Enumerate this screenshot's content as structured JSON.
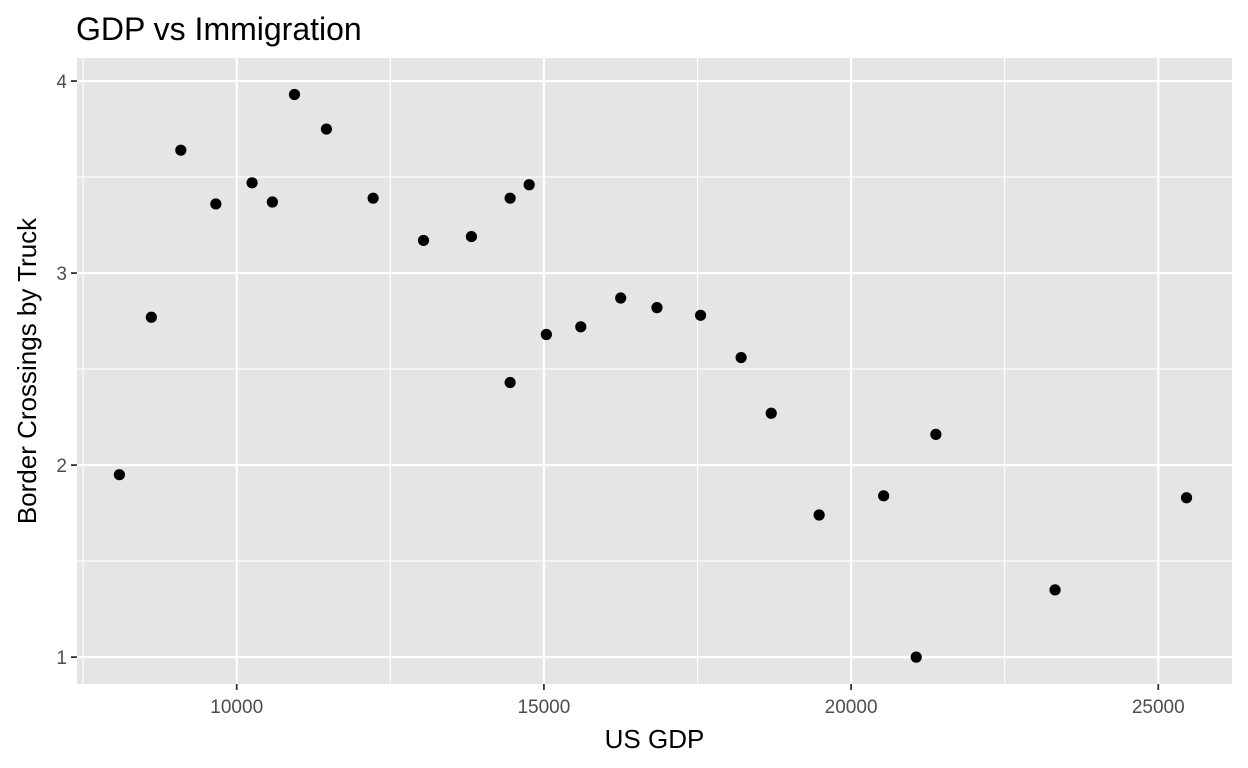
{
  "chart_data": {
    "type": "scatter",
    "title": "GDP vs Immigration",
    "xlabel": "US GDP",
    "ylabel": "Border Crossings by Truck",
    "xlim": [
      7400,
      26200
    ],
    "ylim": [
      0.86,
      4.12
    ],
    "x_ticks": [
      10000,
      15000,
      20000,
      25000
    ],
    "x_tick_labels": [
      "10000",
      "15000",
      "20000",
      "25000"
    ],
    "x_minor_ticks": [
      7500,
      12500,
      17500,
      22500
    ],
    "y_ticks": [
      1,
      2,
      3,
      4
    ],
    "y_tick_labels": [
      "1",
      "2",
      "3",
      "4"
    ],
    "y_minor_ticks": [
      1.5,
      2.5,
      3.5
    ],
    "grid": true,
    "legend": "none",
    "colors": {
      "panel": "#e5e5e5",
      "grid": "#ffffff",
      "point": "#000000",
      "tick_label": "#4d4d4d",
      "tick_mark": "#333333"
    },
    "points": [
      {
        "x": 8090,
        "y": 1.95
      },
      {
        "x": 8610,
        "y": 2.77
      },
      {
        "x": 9090,
        "y": 3.64
      },
      {
        "x": 9660,
        "y": 3.36
      },
      {
        "x": 10250,
        "y": 3.47
      },
      {
        "x": 10580,
        "y": 3.37
      },
      {
        "x": 10940,
        "y": 3.93
      },
      {
        "x": 11460,
        "y": 3.75
      },
      {
        "x": 12220,
        "y": 3.39
      },
      {
        "x": 13040,
        "y": 3.17
      },
      {
        "x": 13820,
        "y": 3.19
      },
      {
        "x": 14450,
        "y": 3.39
      },
      {
        "x": 14450,
        "y": 2.43
      },
      {
        "x": 14760,
        "y": 3.46
      },
      {
        "x": 15040,
        "y": 2.68
      },
      {
        "x": 15600,
        "y": 2.72
      },
      {
        "x": 16250,
        "y": 2.87
      },
      {
        "x": 16840,
        "y": 2.82
      },
      {
        "x": 17550,
        "y": 2.78
      },
      {
        "x": 18210,
        "y": 2.56
      },
      {
        "x": 18700,
        "y": 2.27
      },
      {
        "x": 19480,
        "y": 1.74
      },
      {
        "x": 20530,
        "y": 1.84
      },
      {
        "x": 21060,
        "y": 1.0
      },
      {
        "x": 21380,
        "y": 2.16
      },
      {
        "x": 23320,
        "y": 1.35
      },
      {
        "x": 25460,
        "y": 1.83
      }
    ]
  }
}
